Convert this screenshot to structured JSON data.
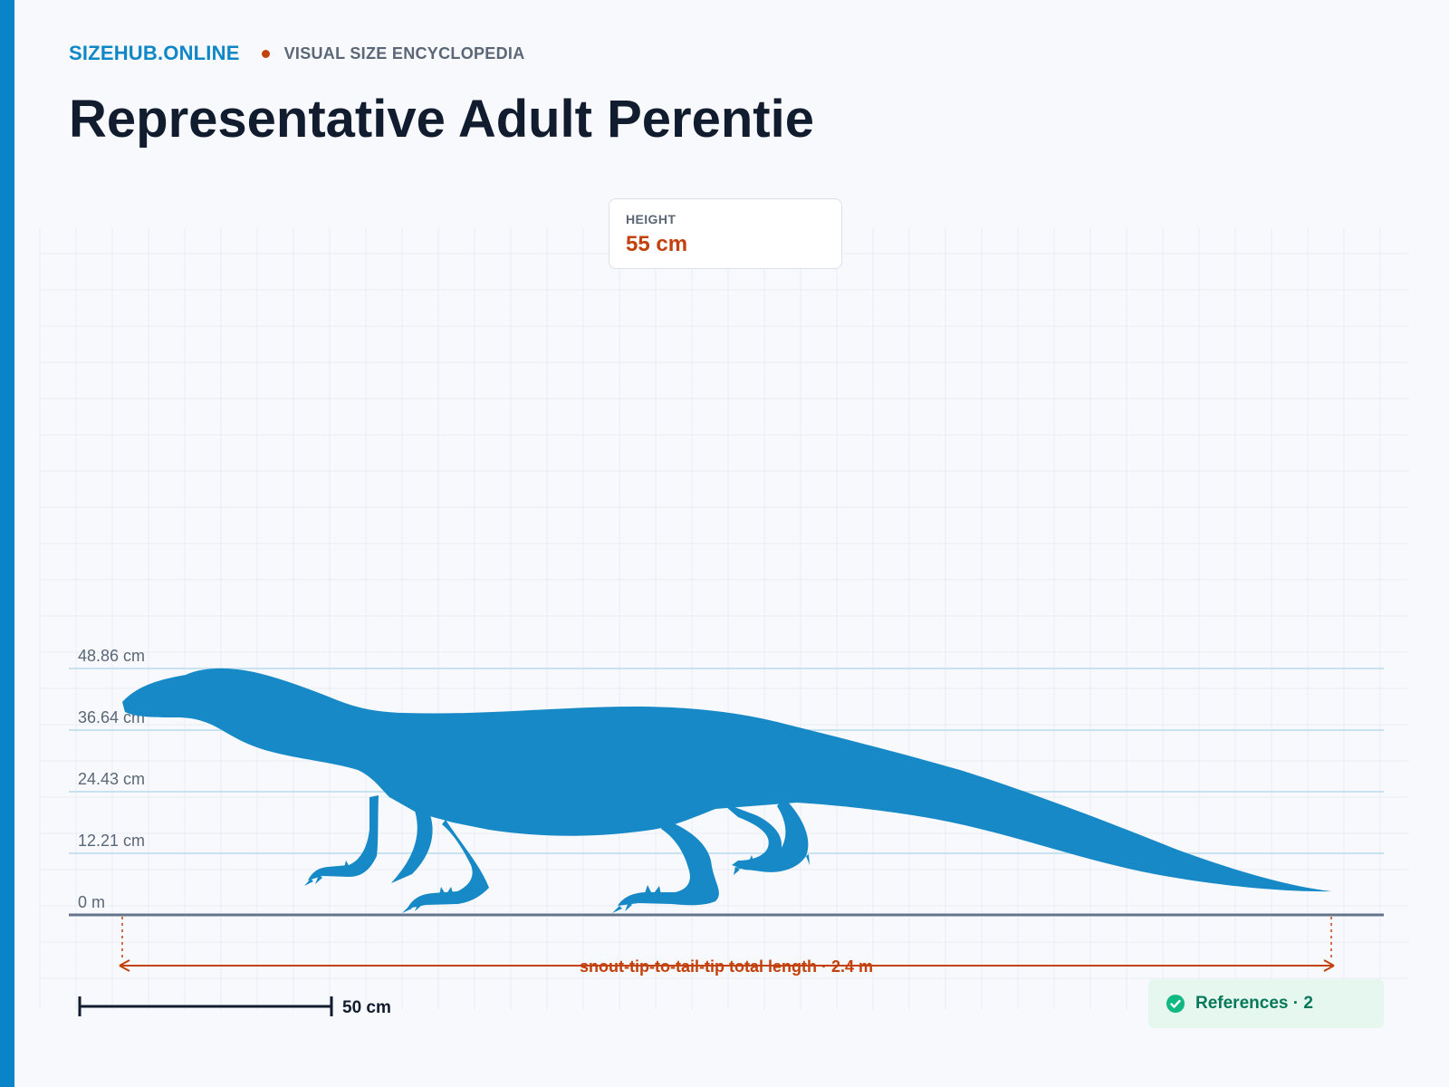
{
  "site": {
    "brand": "SIZEHUB.ONLINE",
    "tagline": "VISUAL SIZE ENCYCLOPEDIA"
  },
  "page": {
    "title": "Representative Adult Perentie"
  },
  "height_card": {
    "label": "HEIGHT",
    "value": "55 cm"
  },
  "scale": {
    "ticks": [
      {
        "label": "48.86 cm",
        "value_cm": 48.86
      },
      {
        "label": "36.64 cm",
        "value_cm": 36.64
      },
      {
        "label": "24.43 cm",
        "value_cm": 24.43
      },
      {
        "label": "12.21 cm",
        "value_cm": 12.21
      },
      {
        "label": "0 m",
        "value_cm": 0
      }
    ],
    "max_cm": 48.86
  },
  "length_annotation": {
    "label": "snout-tip-to-tail-tip total length · 2.4 m",
    "length_m": 2.4
  },
  "scale_bar": {
    "label": "50 cm",
    "length_cm": 50
  },
  "references": {
    "label": "References · 2",
    "count": 2
  },
  "colors": {
    "accent": "#0984c9",
    "silhouette": "#1789c6",
    "annotation": "#c2410c",
    "references_text": "#047857",
    "references_bg": "#e6f7ef",
    "ground": "#64748b"
  },
  "icons": {
    "references": "check-circle-icon"
  }
}
